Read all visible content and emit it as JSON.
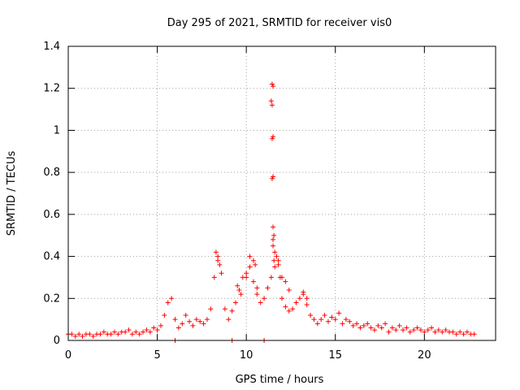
{
  "chart_data": {
    "type": "scatter",
    "title": "Day 295 of 2021, SRMTID for receiver vis0",
    "xlabel": "GPS time / hours",
    "ylabel": "SRMTID / TECUs",
    "xlim": [
      0,
      24
    ],
    "ylim": [
      0,
      1.4
    ],
    "xticks": [
      0,
      5,
      10,
      15,
      20
    ],
    "yticks": [
      0,
      0.2,
      0.4,
      0.6,
      0.8,
      1,
      1.2,
      1.4
    ],
    "xtick_labels": [
      "0",
      "5",
      "10",
      "15",
      "20"
    ],
    "ytick_labels": [
      "0",
      "0.2",
      "0.4",
      "0.6",
      "0.8",
      "1",
      "1.2",
      "1.4"
    ],
    "grid": true,
    "marker": "+",
    "series": [
      {
        "name": "SRMTID",
        "color": "#ff0000",
        "x": [
          0.0,
          0.2,
          0.4,
          0.6,
          0.8,
          1.0,
          1.2,
          1.4,
          1.6,
          1.8,
          2.0,
          2.2,
          2.4,
          2.6,
          2.8,
          3.0,
          3.2,
          3.4,
          3.6,
          3.8,
          4.0,
          4.2,
          4.4,
          4.6,
          4.8,
          5.0,
          5.2,
          5.4,
          5.6,
          5.8,
          6.0,
          6.2,
          6.4,
          6.6,
          6.8,
          7.0,
          7.2,
          7.4,
          7.6,
          7.8,
          8.0,
          8.2,
          8.4,
          8.6,
          8.8,
          9.0,
          9.2,
          9.4,
          9.6,
          9.8,
          10.0,
          10.2,
          10.4,
          10.6,
          10.8,
          11.0,
          11.2,
          11.4,
          11.6,
          11.8,
          12.0,
          12.2,
          12.4,
          12.6,
          12.8,
          13.0,
          13.2,
          13.4,
          13.6,
          13.8,
          14.0,
          14.2,
          14.4,
          14.6,
          14.8,
          15.0,
          15.2,
          15.4,
          15.6,
          15.8,
          16.0,
          16.2,
          16.4,
          16.6,
          16.8,
          17.0,
          17.2,
          17.4,
          17.6,
          17.8,
          18.0,
          18.2,
          18.4,
          18.6,
          18.8,
          19.0,
          19.2,
          19.4,
          19.6,
          19.8,
          20.0,
          20.2,
          20.4,
          20.6,
          20.8,
          21.0,
          21.2,
          21.4,
          21.6,
          21.8,
          22.0,
          22.2,
          22.4,
          22.6,
          22.8,
          8.3,
          8.4,
          8.5,
          10.2,
          10.4,
          10.5,
          11.45,
          11.5,
          11.4,
          11.45,
          11.5,
          11.45,
          11.5,
          11.45,
          11.5,
          11.55,
          11.5,
          11.6,
          11.7,
          11.8,
          11.9,
          11.5,
          11.55,
          12.0,
          12.2,
          12.4,
          13.2,
          13.4,
          9.5,
          9.7,
          10.0,
          10.6,
          6.0,
          9.2,
          11.0
        ],
        "y": [
          0.03,
          0.03,
          0.02,
          0.03,
          0.02,
          0.03,
          0.03,
          0.02,
          0.03,
          0.03,
          0.04,
          0.03,
          0.03,
          0.04,
          0.03,
          0.04,
          0.04,
          0.05,
          0.03,
          0.04,
          0.03,
          0.04,
          0.05,
          0.04,
          0.06,
          0.05,
          0.07,
          0.12,
          0.18,
          0.2,
          0.1,
          0.06,
          0.08,
          0.12,
          0.09,
          0.07,
          0.1,
          0.09,
          0.08,
          0.1,
          0.15,
          0.3,
          0.38,
          0.32,
          0.15,
          0.1,
          0.14,
          0.18,
          0.24,
          0.3,
          0.32,
          0.35,
          0.28,
          0.22,
          0.18,
          0.2,
          0.25,
          0.3,
          0.35,
          0.38,
          0.2,
          0.16,
          0.14,
          0.15,
          0.18,
          0.2,
          0.23,
          0.17,
          0.12,
          0.1,
          0.08,
          0.1,
          0.12,
          0.09,
          0.11,
          0.1,
          0.13,
          0.08,
          0.1,
          0.09,
          0.07,
          0.08,
          0.06,
          0.07,
          0.08,
          0.06,
          0.05,
          0.07,
          0.06,
          0.08,
          0.04,
          0.06,
          0.05,
          0.07,
          0.05,
          0.06,
          0.04,
          0.05,
          0.06,
          0.05,
          0.04,
          0.05,
          0.06,
          0.04,
          0.05,
          0.04,
          0.05,
          0.04,
          0.04,
          0.03,
          0.04,
          0.03,
          0.04,
          0.03,
          0.03,
          0.42,
          0.4,
          0.36,
          0.4,
          0.38,
          0.36,
          1.22,
          1.21,
          1.14,
          1.12,
          0.97,
          0.96,
          0.78,
          0.77,
          0.54,
          0.5,
          0.48,
          0.42,
          0.4,
          0.36,
          0.3,
          0.45,
          0.38,
          0.3,
          0.28,
          0.24,
          0.22,
          0.2,
          0.26,
          0.22,
          0.3,
          0.25,
          0.0,
          0.0,
          0.0
        ]
      }
    ]
  }
}
